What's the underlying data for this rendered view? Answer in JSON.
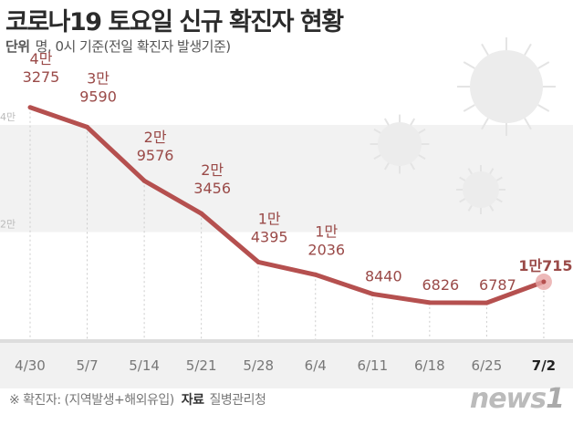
{
  "header": {
    "title": "코로나19 토요일 신규 확진자 현황",
    "unit_label": "단위",
    "unit_text": "명, 0시 기준(전일 확진자 발생기준)"
  },
  "footer": {
    "note": "※ 확진자: (지역발생+해외유입)",
    "source_label": "자료",
    "source": "질병관리청",
    "logo": "news1"
  },
  "chart_data": {
    "type": "line",
    "categories": [
      "4/30",
      "5/7",
      "5/14",
      "5/21",
      "5/28",
      "6/4",
      "6/11",
      "6/18",
      "6/25",
      "7/2"
    ],
    "values": [
      43275,
      39590,
      29576,
      23456,
      14395,
      12036,
      8440,
      6826,
      6787,
      10715
    ],
    "data_labels": [
      [
        "4만",
        "3275"
      ],
      [
        "3만",
        "9590"
      ],
      [
        "2만",
        "9576"
      ],
      [
        "2만",
        "3456"
      ],
      [
        "1만",
        "4395"
      ],
      [
        "1만",
        "2036"
      ],
      [
        "",
        "8440"
      ],
      [
        "",
        "6826"
      ],
      [
        "",
        "6787"
      ],
      [
        "1만715"
      ]
    ],
    "yticks": [
      {
        "value": 20000,
        "label": "2만"
      },
      {
        "value": 40000,
        "label": "4만"
      }
    ],
    "ylim": [
      0,
      45000
    ],
    "highlight": "7/2",
    "line_color": "#b5504f",
    "label_color": "#9a4a48"
  }
}
